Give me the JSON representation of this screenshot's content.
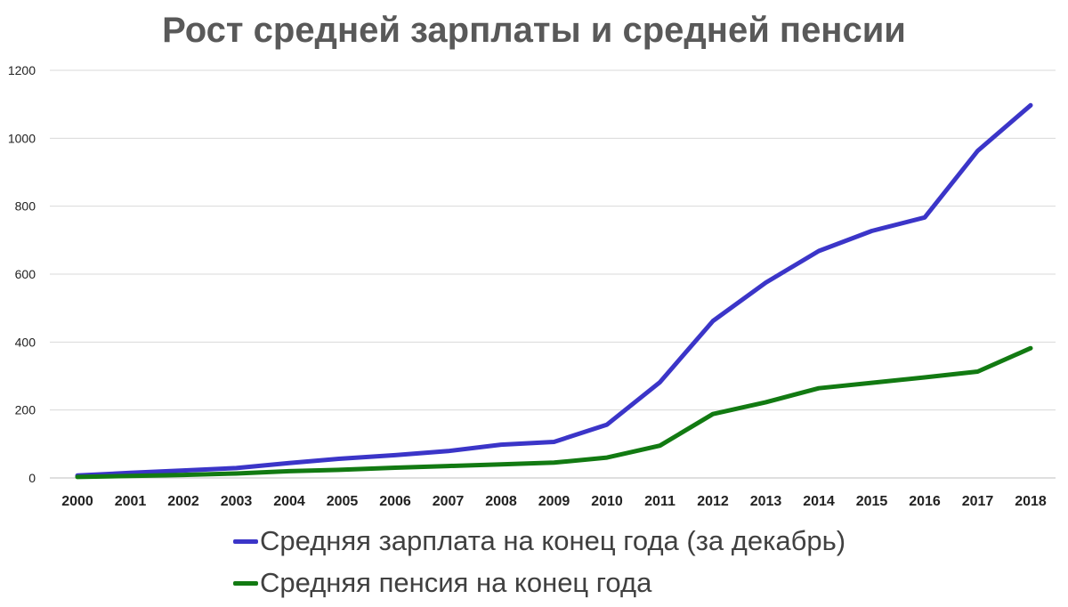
{
  "chart_data": {
    "type": "line",
    "title": "Рост средней зарплаты и средней пенсии",
    "xlabel": "",
    "ylabel": "",
    "categories": [
      "2000",
      "2001",
      "2002",
      "2003",
      "2004",
      "2005",
      "2006",
      "2007",
      "2008",
      "2009",
      "2010",
      "2011",
      "2012",
      "2013",
      "2014",
      "2015",
      "2016",
      "2017",
      "2018"
    ],
    "ylim": [
      0,
      1200
    ],
    "yticks": [
      "0",
      "200",
      "400",
      "600",
      "800",
      "1000",
      "1200"
    ],
    "grid": "horizontal",
    "legend_position": "bottom",
    "series": [
      {
        "name": "Средняя зарплата на конец года (за декабрь)",
        "color": "#3b35c8",
        "values": [
          7,
          15,
          22,
          29,
          44,
          57,
          67,
          79,
          98,
          106,
          157,
          282,
          462,
          575,
          668,
          727,
          767,
          963,
          1097
        ]
      },
      {
        "name": "Средняя пенсия на конец года",
        "color": "#127a12",
        "values": [
          3,
          6,
          9,
          13,
          20,
          24,
          30,
          35,
          40,
          45,
          60,
          95,
          188,
          223,
          264,
          280,
          296,
          313,
          382
        ]
      }
    ]
  }
}
